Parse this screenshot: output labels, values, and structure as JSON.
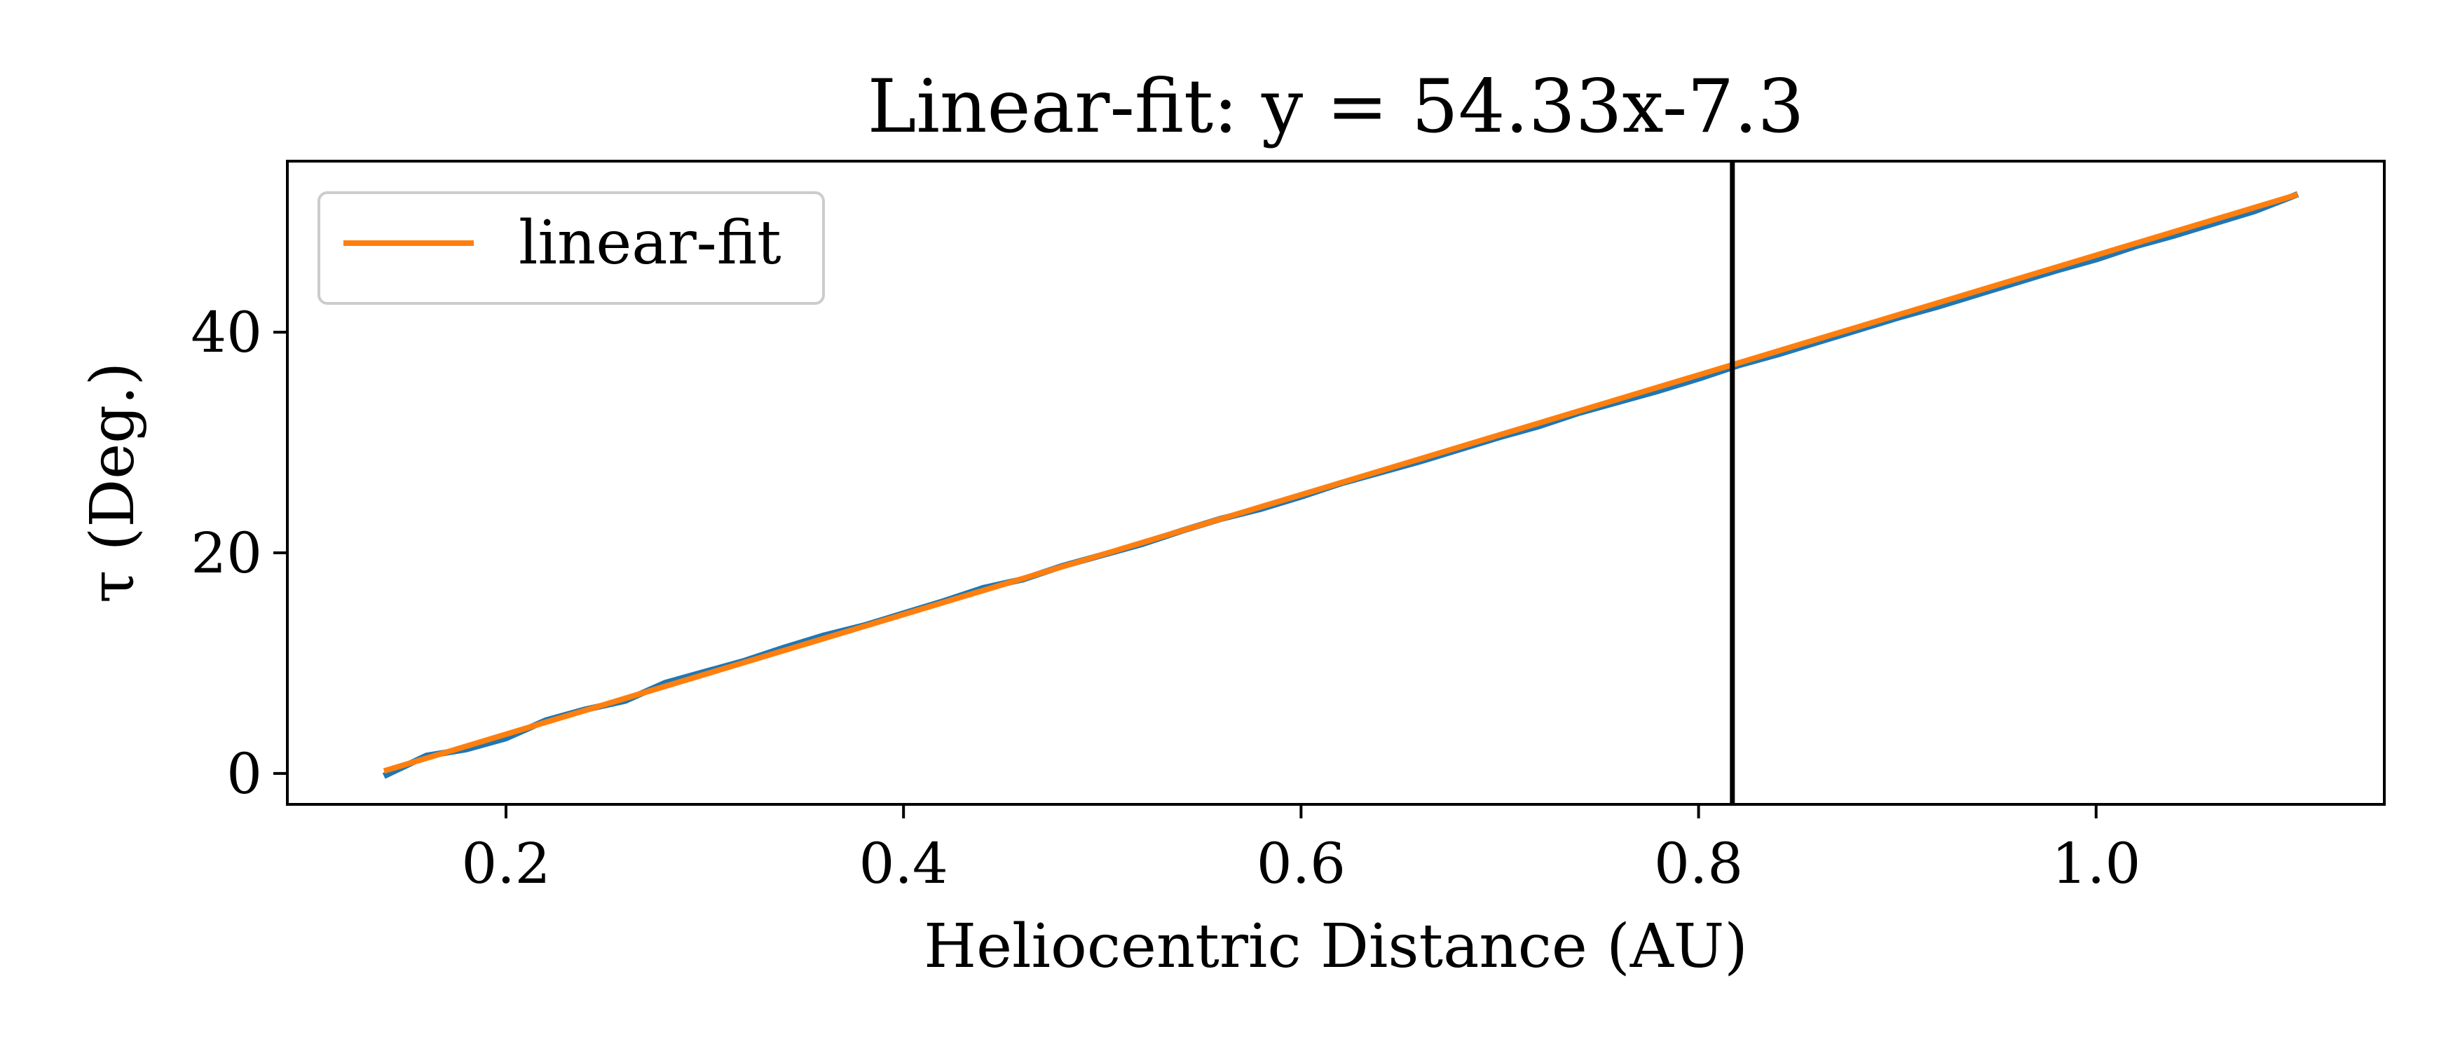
{
  "chart_data": {
    "type": "line",
    "title": "Linear-fit: y = 54.33x-7.3",
    "xlabel": "Heliocentric Distance (AU)",
    "ylabel": "τ (Deg.)",
    "xlim": [
      0.09,
      1.145
    ],
    "ylim": [
      -2.8,
      55.5
    ],
    "x_ticks": [
      0.2,
      0.4,
      0.6,
      0.8,
      1.0
    ],
    "x_tick_labels": [
      "0.2",
      "0.4",
      "0.6",
      "0.8",
      "1.0"
    ],
    "y_ticks": [
      0,
      20,
      40
    ],
    "y_tick_labels": [
      "0",
      "20",
      "40"
    ],
    "grid": false,
    "legend_position": "upper-left",
    "vline": {
      "x": 0.817,
      "color": "#000000"
    },
    "series": [
      {
        "color": "#1f77b4",
        "x": [
          0.14,
          0.16,
          0.18,
          0.2,
          0.22,
          0.24,
          0.26,
          0.28,
          0.3,
          0.32,
          0.34,
          0.36,
          0.38,
          0.4,
          0.42,
          0.44,
          0.46,
          0.48,
          0.5,
          0.52,
          0.54,
          0.56,
          0.58,
          0.6,
          0.62,
          0.64,
          0.66,
          0.68,
          0.7,
          0.72,
          0.74,
          0.76,
          0.78,
          0.8,
          0.82,
          0.84,
          0.86,
          0.88,
          0.9,
          0.92,
          0.94,
          0.96,
          0.98,
          1.0,
          1.02,
          1.04,
          1.06,
          1.08,
          1.1
        ],
        "values": [
          -0.1,
          1.6,
          2.2,
          3.2,
          4.8,
          5.8,
          6.6,
          8.2,
          9.2,
          10.2,
          11.4,
          12.5,
          13.4,
          14.5,
          15.6,
          16.8,
          17.6,
          18.8,
          19.8,
          20.8,
          22.0,
          23.1,
          24.0,
          25.1,
          26.3,
          27.3,
          28.3,
          29.4,
          30.5,
          31.5,
          32.7,
          33.7,
          34.7,
          35.8,
          37.0,
          38.0,
          39.1,
          40.2,
          41.3,
          42.3,
          43.4,
          44.5,
          45.6,
          46.6,
          47.8,
          48.8,
          49.9,
          51.0,
          52.4
        ]
      },
      {
        "name": "linear-fit",
        "color": "#ff7f0e",
        "x": [
          0.14,
          1.1
        ],
        "values": [
          0.3,
          52.4
        ]
      }
    ]
  }
}
